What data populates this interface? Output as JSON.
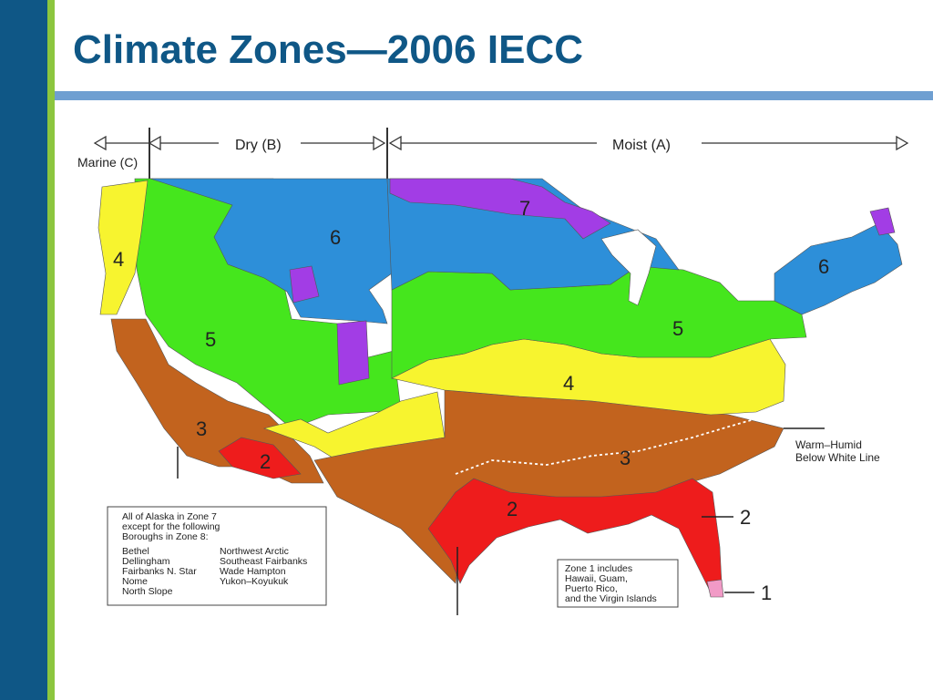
{
  "slide": {
    "title": "Climate Zones—2006 IECC",
    "colors": {
      "sidebar": "#0f5786",
      "accent_green": "#8cc63f",
      "rule": "#6f9fd1",
      "title": "#0f5786"
    }
  },
  "map": {
    "moisture_regimes": {
      "marine": "Marine (C)",
      "dry": "Dry (B)",
      "moist": "Moist (A)"
    },
    "zone_colors": {
      "1": "#f19ac6",
      "2": "#ee1c1c",
      "3": "#c2631e",
      "4": "#f7f42f",
      "5": "#45e61d",
      "6": "#2d8fd9",
      "7": "#a23de5"
    },
    "zone_labels": {
      "zone4_west": "4",
      "zone6_west": "6",
      "zone5_west": "5",
      "zone3_west": "3",
      "zone2_west": "2",
      "zone7_north": "7",
      "zone6_east": "6",
      "zone5_east": "5",
      "zone4_east": "4",
      "zone3_south": "3",
      "zone2_gulf": "2",
      "zone2_callout": "2",
      "zone1_callout": "1"
    },
    "warm_humid_note": {
      "line1": "Warm–Humid",
      "line2": "Below White Line"
    },
    "alaska_box": {
      "heading": [
        "All of Alaska in Zone 7",
        "except for the following",
        "Boroughs in Zone 8:"
      ],
      "col1": [
        "Bethel",
        "Dellingham",
        "Fairbanks N. Star",
        "Nome",
        "North Slope"
      ],
      "col2": [
        "Northwest Arctic",
        "Southeast Fairbanks",
        "Wade Hampton",
        "Yukon–Koyukuk"
      ]
    },
    "zone1_box": {
      "lines": [
        "Zone 1 includes",
        "Hawaii, Guam,",
        "Puerto Rico,",
        "and the Virgin Islands"
      ]
    }
  }
}
